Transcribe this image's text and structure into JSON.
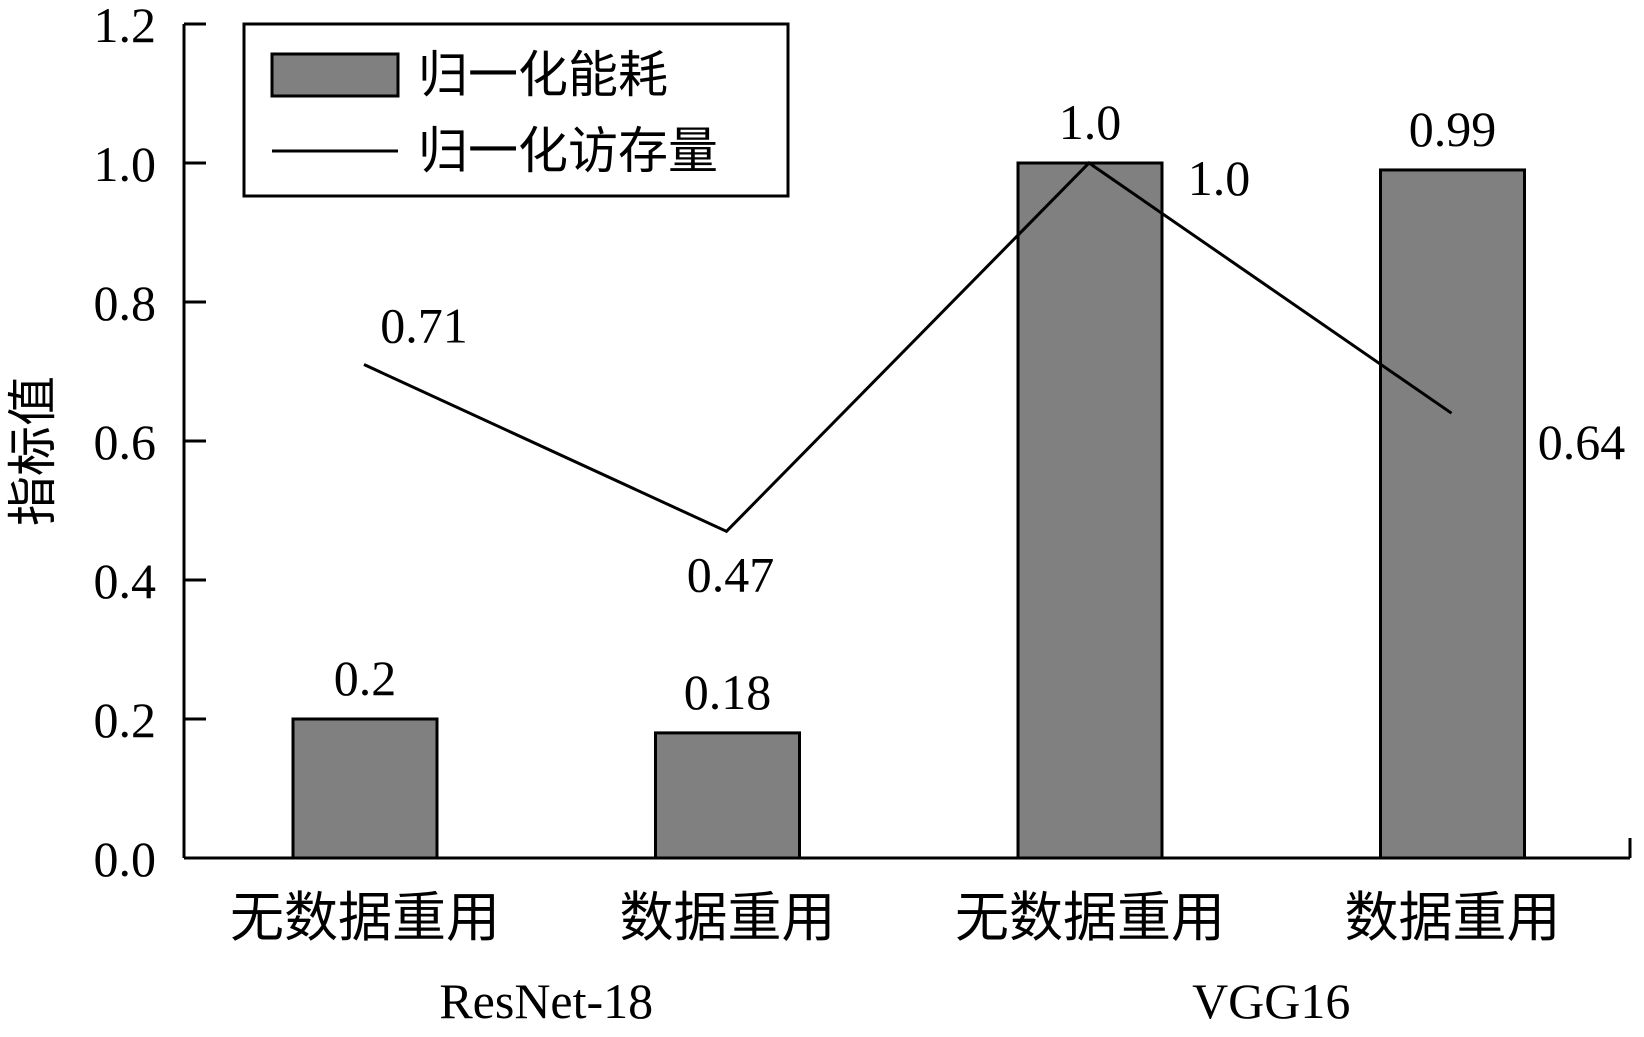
{
  "chart_data": {
    "type": "bar",
    "ylabel": "指标值",
    "ylim": [
      0,
      1.2
    ],
    "yticks": [
      "0.0",
      "0.2",
      "0.4",
      "0.6",
      "0.8",
      "1.0",
      "1.2"
    ],
    "categories": [
      "无数据重用",
      "数据重用",
      "无数据重用",
      "数据重用"
    ],
    "groups": [
      {
        "label": "ResNet-18",
        "span": [
          0,
          1
        ]
      },
      {
        "label": "VGG16",
        "span": [
          2,
          3
        ]
      }
    ],
    "series": [
      {
        "name": "归一化能耗",
        "kind": "bar",
        "values": [
          0.2,
          0.18,
          1.0,
          0.99
        ],
        "labels": [
          "0.2",
          "0.18",
          "1.0",
          "0.99"
        ],
        "color": "#808080"
      },
      {
        "name": "归一化访存量",
        "kind": "line",
        "values": [
          0.71,
          0.47,
          1.0,
          0.64
        ],
        "labels": [
          "0.71",
          "0.47",
          "1.0",
          "0.64"
        ],
        "color": "#000000"
      }
    ],
    "legend": "top-left",
    "grid": false
  }
}
